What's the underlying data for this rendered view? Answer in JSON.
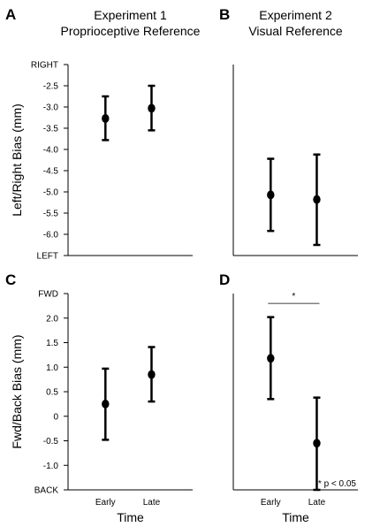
{
  "chart_data": [
    {
      "panel_label": "A",
      "title_lines": [
        "Experiment 1",
        "Proprioceptive Reference"
      ],
      "type": "scatter",
      "error_bars": true,
      "ylabel": "Left/Right Bias (mm)",
      "xlabel": "",
      "categories": [
        "Early",
        "Late"
      ],
      "show_x_ticklabels": false,
      "ylim": [
        -6.5,
        -2.0
      ],
      "y_ticks": [
        {
          "value": -2.0,
          "label": "RIGHT"
        },
        {
          "value": -2.5,
          "label": "-2.5"
        },
        {
          "value": -3.0,
          "label": "-3.0"
        },
        {
          "value": -3.5,
          "label": "-3.5"
        },
        {
          "value": -4.0,
          "label": "-4.0"
        },
        {
          "value": -4.5,
          "label": "-4.5"
        },
        {
          "value": -5.0,
          "label": "-5.0"
        },
        {
          "value": -5.5,
          "label": "-5.5"
        },
        {
          "value": -6.0,
          "label": "-6.0"
        },
        {
          "value": -6.5,
          "label": "LEFT"
        }
      ],
      "series": [
        {
          "values": [
            -3.27,
            -3.03
          ],
          "lower": [
            -3.78,
            -3.55
          ],
          "upper": [
            -2.75,
            -2.5
          ]
        }
      ]
    },
    {
      "panel_label": "B",
      "title_lines": [
        "Experiment 2",
        "Visual Reference"
      ],
      "type": "scatter",
      "error_bars": true,
      "ylabel": "",
      "xlabel": "",
      "categories": [
        "Early",
        "Late"
      ],
      "show_x_ticklabels": false,
      "ylim": [
        -6.5,
        -2.0
      ],
      "y_ticks": [],
      "series": [
        {
          "values": [
            -5.07,
            -5.18
          ],
          "lower": [
            -5.92,
            -6.25
          ],
          "upper": [
            -4.22,
            -4.12
          ]
        }
      ]
    },
    {
      "panel_label": "C",
      "title_lines": [],
      "type": "scatter",
      "error_bars": true,
      "ylabel": "Fwd/Back Bias (mm)",
      "xlabel": "Time",
      "categories": [
        "Early",
        "Late"
      ],
      "show_x_ticklabels": true,
      "ylim": [
        -1.5,
        2.5
      ],
      "y_ticks": [
        {
          "value": 2.5,
          "label": "FWD"
        },
        {
          "value": 2.0,
          "label": "2.0"
        },
        {
          "value": 1.5,
          "label": "1.5"
        },
        {
          "value": 1.0,
          "label": "1.0"
        },
        {
          "value": 0.5,
          "label": "0.5"
        },
        {
          "value": 0.0,
          "label": "0"
        },
        {
          "value": -0.5,
          "label": "-0.5"
        },
        {
          "value": -1.0,
          "label": "-1.0"
        },
        {
          "value": -1.5,
          "label": "BACK"
        }
      ],
      "series": [
        {
          "values": [
            0.25,
            0.85
          ],
          "lower": [
            -0.48,
            0.3
          ],
          "upper": [
            0.97,
            1.41
          ]
        }
      ]
    },
    {
      "panel_label": "D",
      "title_lines": [],
      "type": "scatter",
      "error_bars": true,
      "ylabel": "",
      "xlabel": "Time",
      "categories": [
        "Early",
        "Late"
      ],
      "show_x_ticklabels": true,
      "ylim": [
        -1.5,
        2.5
      ],
      "y_ticks": [],
      "series": [
        {
          "values": [
            1.18,
            -0.55
          ],
          "lower": [
            0.35,
            -1.5
          ],
          "upper": [
            2.02,
            0.38
          ]
        }
      ],
      "significance": {
        "marker": "*",
        "between": [
          "Early",
          "Late"
        ],
        "value": 2.3
      },
      "note": "* p < 0.05"
    }
  ]
}
